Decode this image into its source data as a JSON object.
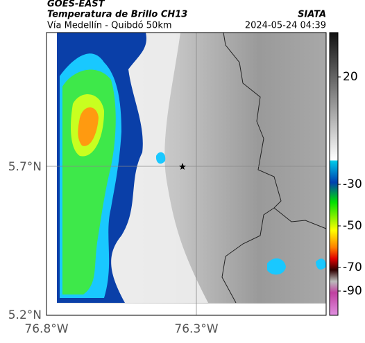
{
  "header": {
    "source": "GOES-EAST",
    "product": "Temperatura de Brillo CH13",
    "route": "Vía Medellín - Quibdó 50km",
    "org": "SIATA",
    "datetime": "2024-05-24 04:39"
  },
  "axes": {
    "lat_labels": [
      "5.7°N",
      "5.2°N"
    ],
    "lon_labels": [
      "76.8°W",
      "76.3°W"
    ]
  },
  "colorbar": {
    "ticks": [
      20,
      -30,
      -50,
      -70,
      -90
    ]
  }
}
